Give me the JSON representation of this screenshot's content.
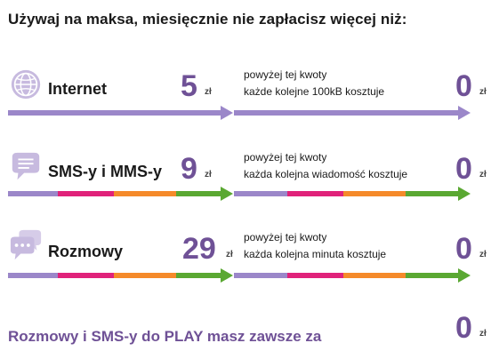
{
  "headline": "Używaj na maksa, miesięcznie nie zapłacisz więcej niż:",
  "colors": {
    "purple": "#9b87c9",
    "magenta": "#e0227a",
    "orange": "#f58a2a",
    "green": "#5aa832",
    "price_text": "#6f5196"
  },
  "rows": [
    {
      "icon": "globe-icon",
      "label": "Internet",
      "price": "5",
      "price_unit": "zł",
      "desc_line1": "powyżej tej kwoty",
      "desc_line2": "każde kolejne 100kB kosztuje",
      "after_price": "0",
      "after_unit": "zł"
    },
    {
      "icon": "message-bubble-icon",
      "label": "SMS-y i MMS-y",
      "price": "9",
      "price_unit": "zł",
      "desc_line1": "powyżej tej kwoty",
      "desc_line2": "każda kolejna wiadomość kosztuje",
      "after_price": "0",
      "after_unit": "zł"
    },
    {
      "icon": "chat-bubbles-icon",
      "label": "Rozmowy",
      "price": "29",
      "price_unit": "zł",
      "desc_line1": "powyżej tej kwoty",
      "desc_line2": "każda kolejna minuta kosztuje",
      "after_price": "0",
      "after_unit": "zł"
    }
  ],
  "footer": {
    "label": "Rozmowy i SMS-y do PLAY masz zawsze za",
    "price": "0",
    "unit": "zł"
  }
}
